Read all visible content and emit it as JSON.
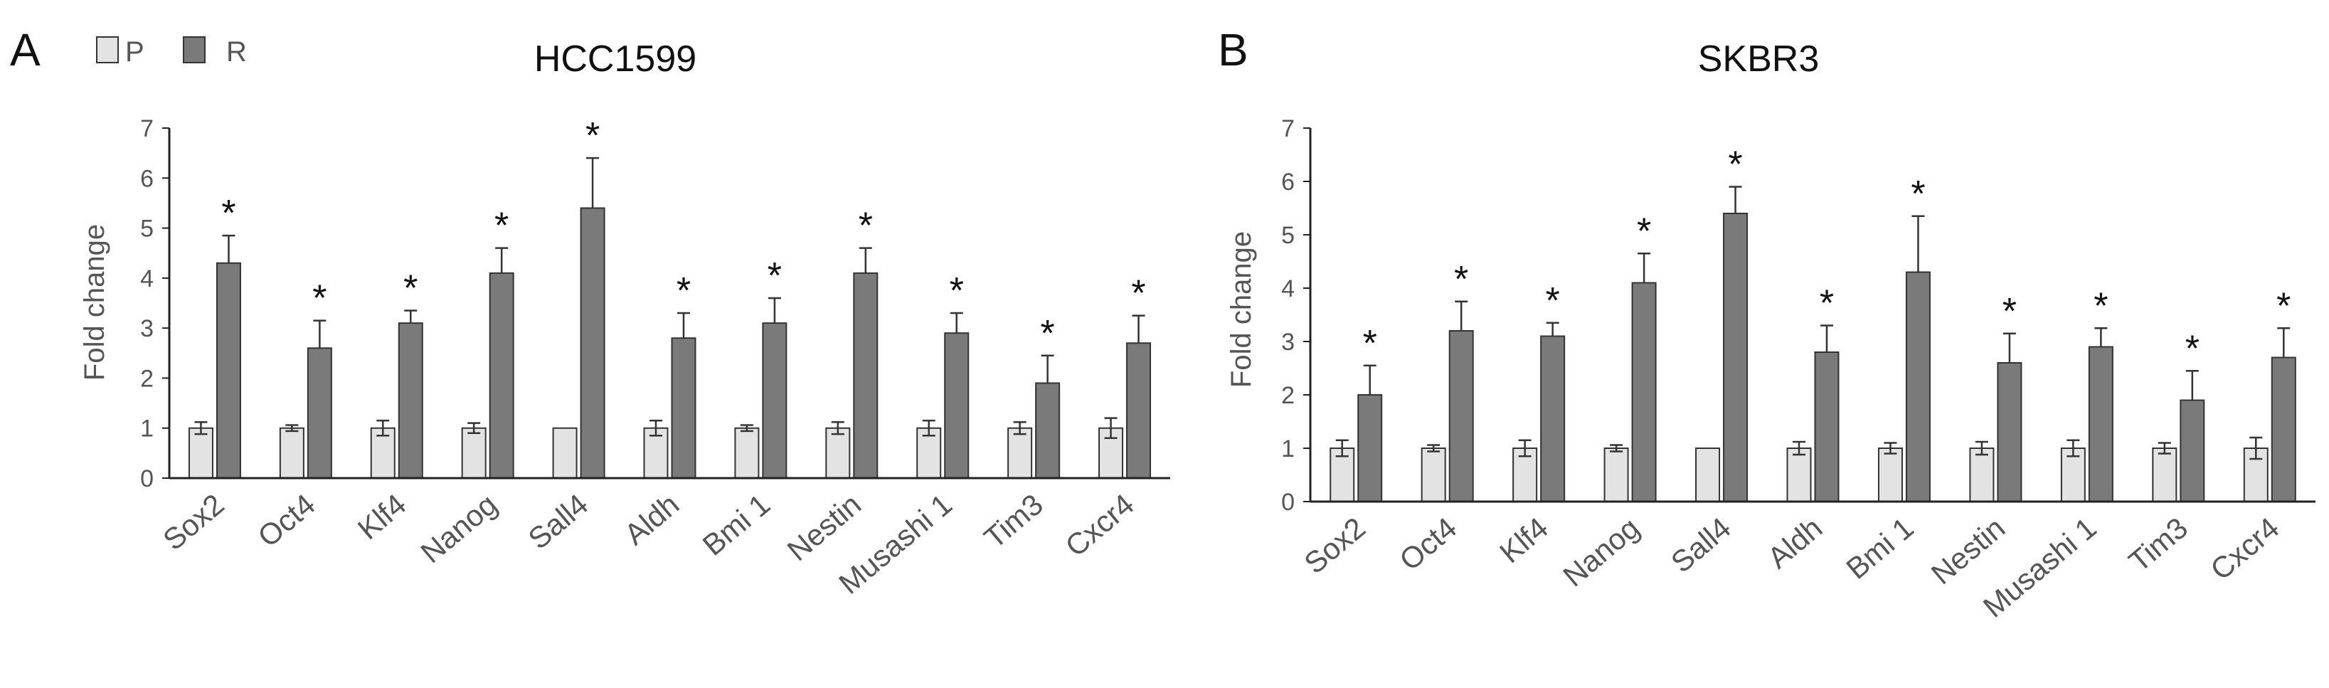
{
  "legend": [
    {
      "label": "P",
      "color": "#e3e3e3"
    },
    {
      "label": "R",
      "color": "#7a7a7a"
    }
  ],
  "colors": {
    "edge": "#333333",
    "axis": "#222222"
  },
  "chart_data": [
    {
      "type": "bar",
      "panel": "A",
      "title": "HCC1599",
      "ylabel": "Fold change",
      "xlabel": "",
      "ylim": [
        0,
        7
      ],
      "yticks": [
        "0",
        "1",
        "2",
        "3",
        "4",
        "5",
        "6",
        "7"
      ],
      "categories": [
        "Sox2",
        "Oct4",
        "Klf4",
        "Nanog",
        "Sall4",
        "Aldh",
        "Bmi 1",
        "Nestin",
        "Musashi 1",
        "Tim3",
        "Cxcr4"
      ],
      "series": [
        {
          "name": "P",
          "values": [
            1,
            1,
            1,
            1,
            1,
            1,
            1,
            1,
            1,
            1,
            1
          ],
          "errors": [
            0.12,
            0.06,
            0.15,
            0.1,
            0,
            0.15,
            0.06,
            0.12,
            0.15,
            0.12,
            0.2
          ]
        },
        {
          "name": "R",
          "values": [
            4.3,
            2.6,
            3.1,
            4.1,
            5.4,
            2.8,
            3.1,
            4.1,
            2.9,
            1.9,
            2.7
          ],
          "errors": [
            0.55,
            0.55,
            0.25,
            0.5,
            1.0,
            0.5,
            0.5,
            0.5,
            0.4,
            0.55,
            0.55
          ]
        }
      ],
      "annotations": [
        "*",
        "*",
        "*",
        "*",
        "*",
        "*",
        "*",
        "*",
        "*",
        "*",
        "*"
      ]
    },
    {
      "type": "bar",
      "panel": "B",
      "title": "SKBR3",
      "ylabel": "Fold change",
      "xlabel": "",
      "ylim": [
        0,
        7
      ],
      "yticks": [
        "0",
        "1",
        "2",
        "3",
        "4",
        "5",
        "6",
        "7"
      ],
      "categories": [
        "Sox2",
        "Oct4",
        "Klf4",
        "Nanog",
        "Sall4",
        "Aldh",
        "Bmi 1",
        "Nestin",
        "Musashi 1",
        "Tim3",
        "Cxcr4"
      ],
      "series": [
        {
          "name": "P",
          "values": [
            1,
            1,
            1,
            1,
            1,
            1,
            1,
            1,
            1,
            1,
            1
          ],
          "errors": [
            0.15,
            0.06,
            0.15,
            0.06,
            0,
            0.12,
            0.1,
            0.12,
            0.15,
            0.1,
            0.2
          ]
        },
        {
          "name": "R",
          "values": [
            2.0,
            3.2,
            3.1,
            4.1,
            5.4,
            2.8,
            4.3,
            2.6,
            2.9,
            1.9,
            2.7
          ],
          "errors": [
            0.55,
            0.55,
            0.25,
            0.55,
            0.5,
            0.5,
            1.05,
            0.55,
            0.35,
            0.55,
            0.55
          ]
        }
      ],
      "annotations": [
        "*",
        "*",
        "*",
        "*",
        "*",
        "*",
        "*",
        "*",
        "*",
        "*",
        "*"
      ]
    }
  ]
}
